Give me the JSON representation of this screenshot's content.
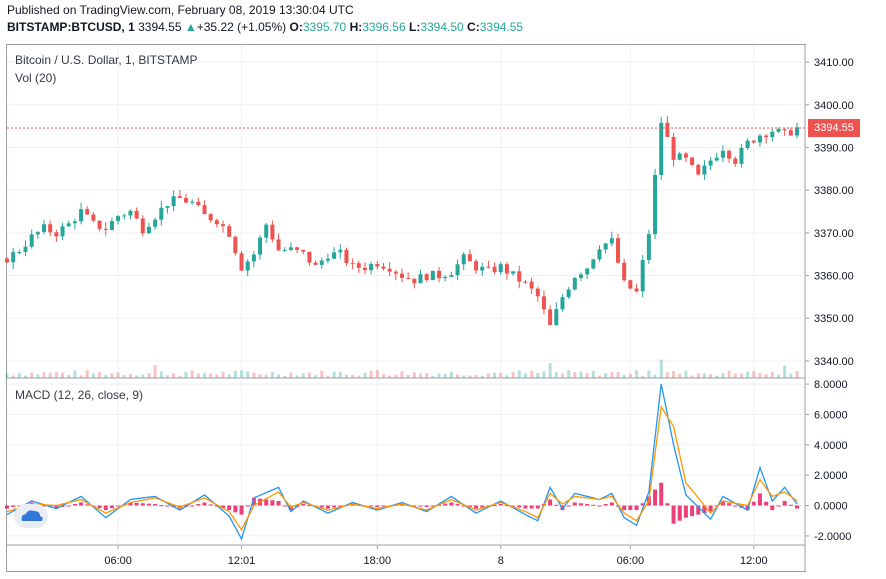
{
  "header": {
    "published": "Published on TradingView.com, February 08, 2019 13:30:04 UTC",
    "symbol": "BITSTAMP:BTCUSD, 1",
    "last": "3394.55",
    "change": "+35.22 (+1.05%)",
    "o_label": "O:",
    "o_val": "3395.70",
    "h_label": "H:",
    "h_val": "3396.56",
    "l_label": "L:",
    "l_val": "3394.50",
    "c_label": "C:",
    "c_val": "3394.55"
  },
  "price_pane": {
    "title": "Bitcoin / U.S. Dollar, 1, BITSTAMP",
    "vol_label": "Vol (20)",
    "last_price_badge": "3394.55"
  },
  "macd_pane": {
    "title": "MACD (12, 26, close, 9)"
  },
  "colors": {
    "up": "#26a69a",
    "down": "#ef5350",
    "macd_line": "#2196f3",
    "signal_line": "#ff9800",
    "histogram": "#e91e63",
    "grid": "#eef0f3",
    "last_price_line": "#ef5350"
  },
  "chart_data": [
    {
      "type": "candlestick",
      "title": "Bitcoin / U.S. Dollar, 1, BITSTAMP",
      "y_ticks": [
        "3340.00",
        "3350.00",
        "3360.00",
        "3370.00",
        "3380.00",
        "3390.00",
        "3400.00",
        "3410.00"
      ],
      "ylim": [
        3336,
        3414
      ],
      "x_ticks": [
        "06:00",
        "12:01",
        "18:00",
        "8",
        "06:00",
        "12:00"
      ],
      "last_price": 3394.55,
      "price_path": [
        [
          0,
          3364
        ],
        [
          2,
          3366
        ],
        [
          4,
          3369
        ],
        [
          6,
          3371
        ],
        [
          8,
          3370
        ],
        [
          10,
          3372
        ],
        [
          12,
          3375
        ],
        [
          14,
          3372
        ],
        [
          16,
          3371
        ],
        [
          18,
          3374
        ],
        [
          20,
          3375
        ],
        [
          22,
          3371
        ],
        [
          24,
          3374
        ],
        [
          26,
          3377
        ],
        [
          28,
          3378
        ],
        [
          30,
          3377
        ],
        [
          32,
          3374
        ],
        [
          34,
          3373
        ],
        [
          36,
          3370
        ],
        [
          38,
          3362
        ],
        [
          40,
          3365
        ],
        [
          42,
          3372
        ],
        [
          44,
          3366
        ],
        [
          46,
          3366
        ],
        [
          48,
          3365
        ],
        [
          50,
          3362
        ],
        [
          52,
          3365
        ],
        [
          54,
          3365
        ],
        [
          56,
          3362
        ],
        [
          58,
          3362
        ],
        [
          60,
          3363
        ],
        [
          62,
          3362
        ],
        [
          64,
          3360
        ],
        [
          66,
          3359
        ],
        [
          68,
          3360
        ],
        [
          70,
          3360
        ],
        [
          72,
          3361
        ],
        [
          74,
          3364
        ],
        [
          76,
          3362
        ],
        [
          78,
          3361
        ],
        [
          80,
          3362
        ],
        [
          82,
          3360
        ],
        [
          84,
          3358
        ],
        [
          86,
          3355
        ],
        [
          88,
          3348
        ],
        [
          90,
          3355
        ],
        [
          92,
          3360
        ],
        [
          94,
          3362
        ],
        [
          96,
          3367
        ],
        [
          98,
          3368
        ],
        [
          100,
          3358
        ],
        [
          102,
          3356
        ],
        [
          104,
          3370
        ],
        [
          106,
          3396
        ],
        [
          108,
          3388
        ],
        [
          110,
          3387
        ],
        [
          112,
          3383
        ],
        [
          114,
          3387
        ],
        [
          116,
          3390
        ],
        [
          118,
          3387
        ],
        [
          120,
          3391
        ],
        [
          122,
          3393
        ],
        [
          124,
          3394
        ],
        [
          126,
          3393
        ],
        [
          128,
          3394.55
        ]
      ],
      "volume_spikes": [
        [
          24,
          3
        ],
        [
          60,
          2
        ],
        [
          88,
          4
        ],
        [
          104,
          5
        ],
        [
          106,
          9
        ],
        [
          120,
          6
        ],
        [
          126,
          2
        ]
      ]
    },
    {
      "type": "line",
      "title": "MACD (12, 26, close, 9)",
      "y_ticks": [
        "-2.0000",
        "0.0000",
        "2.0000",
        "4.0000",
        "6.0000",
        "8.0000"
      ],
      "ylim": [
        -2.6,
        8.4
      ],
      "series": [
        {
          "color_key": "macd_line",
          "values": [
            [
              0,
              -0.6
            ],
            [
              4,
              0.3
            ],
            [
              8,
              -0.2
            ],
            [
              12,
              0.6
            ],
            [
              16,
              -0.8
            ],
            [
              20,
              0.4
            ],
            [
              24,
              0.6
            ],
            [
              28,
              -0.3
            ],
            [
              32,
              0.7
            ],
            [
              36,
              -0.7
            ],
            [
              38,
              -2.2
            ],
            [
              40,
              0.5
            ],
            [
              44,
              1.2
            ],
            [
              46,
              -0.4
            ],
            [
              48,
              0.3
            ],
            [
              52,
              -0.5
            ],
            [
              56,
              0.2
            ],
            [
              60,
              -0.3
            ],
            [
              64,
              0.2
            ],
            [
              68,
              -0.4
            ],
            [
              72,
              0.6
            ],
            [
              76,
              -0.5
            ],
            [
              80,
              0.3
            ],
            [
              84,
              -0.6
            ],
            [
              86,
              -1.0
            ],
            [
              88,
              1.2
            ],
            [
              90,
              -0.2
            ],
            [
              92,
              0.8
            ],
            [
              96,
              0.4
            ],
            [
              98,
              0.8
            ],
            [
              100,
              -0.8
            ],
            [
              102,
              -1.3
            ],
            [
              104,
              0.9
            ],
            [
              106,
              8.0
            ],
            [
              108,
              4.0
            ],
            [
              110,
              0.7
            ],
            [
              114,
              -0.9
            ],
            [
              116,
              0.6
            ],
            [
              120,
              -0.3
            ],
            [
              122,
              2.5
            ],
            [
              124,
              0.3
            ],
            [
              126,
              1.2
            ],
            [
              128,
              0.1
            ]
          ]
        },
        {
          "color_key": "signal_line",
          "values": [
            [
              0,
              -0.4
            ],
            [
              4,
              0.1
            ],
            [
              8,
              0.0
            ],
            [
              12,
              0.4
            ],
            [
              16,
              -0.5
            ],
            [
              20,
              0.2
            ],
            [
              24,
              0.5
            ],
            [
              28,
              -0.1
            ],
            [
              32,
              0.5
            ],
            [
              36,
              -0.4
            ],
            [
              38,
              -1.6
            ],
            [
              40,
              0.0
            ],
            [
              44,
              0.9
            ],
            [
              46,
              -0.1
            ],
            [
              48,
              0.2
            ],
            [
              52,
              -0.3
            ],
            [
              56,
              0.1
            ],
            [
              60,
              -0.2
            ],
            [
              64,
              0.1
            ],
            [
              68,
              -0.3
            ],
            [
              72,
              0.4
            ],
            [
              76,
              -0.3
            ],
            [
              80,
              0.2
            ],
            [
              84,
              -0.4
            ],
            [
              86,
              -0.8
            ],
            [
              88,
              0.8
            ],
            [
              90,
              0.1
            ],
            [
              92,
              0.6
            ],
            [
              96,
              0.4
            ],
            [
              98,
              0.6
            ],
            [
              100,
              -0.5
            ],
            [
              102,
              -1.0
            ],
            [
              104,
              0.3
            ],
            [
              106,
              6.5
            ],
            [
              108,
              5.2
            ],
            [
              110,
              1.5
            ],
            [
              114,
              -0.5
            ],
            [
              116,
              0.3
            ],
            [
              120,
              0.0
            ],
            [
              122,
              1.7
            ],
            [
              124,
              0.6
            ],
            [
              126,
              0.9
            ],
            [
              128,
              0.3
            ]
          ]
        }
      ]
    }
  ]
}
